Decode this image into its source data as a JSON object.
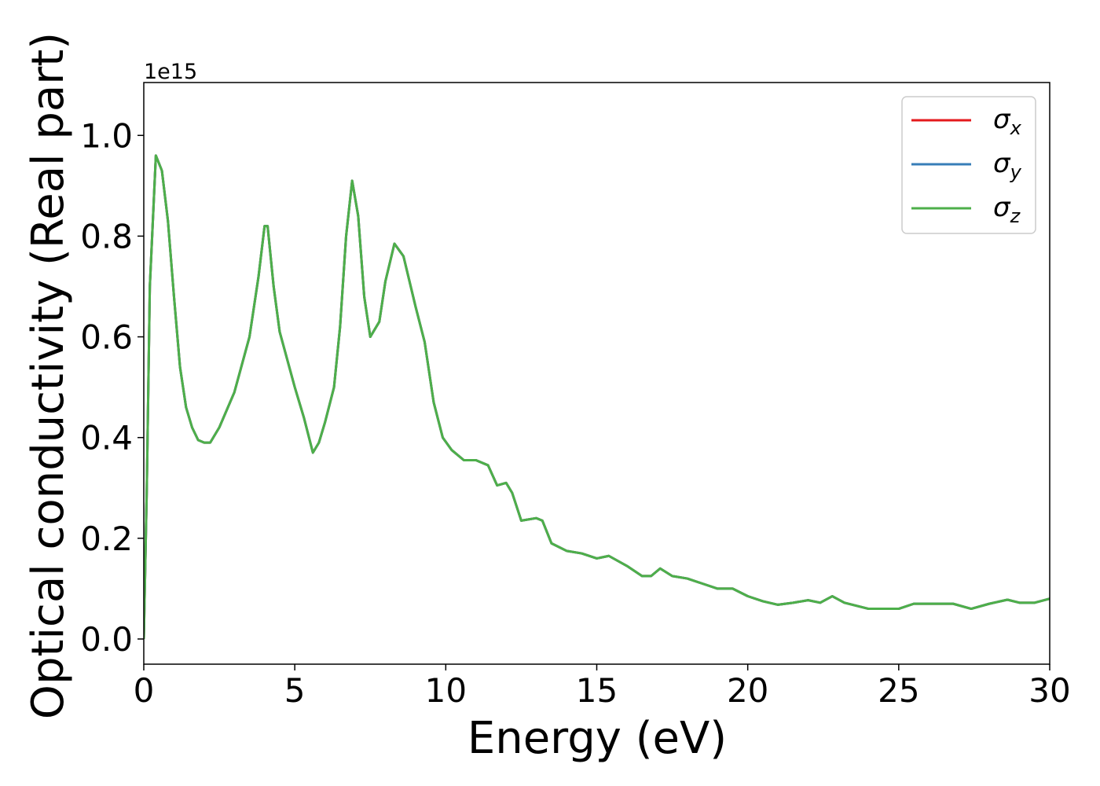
{
  "chart_data": {
    "type": "line",
    "x_label": "Energy (eV)",
    "y_label": "Optical conductivity (Real part)",
    "y_offset_text": "1e15",
    "xlim": [
      0,
      30
    ],
    "xticks": [
      0,
      5,
      10,
      15,
      20,
      25,
      30
    ],
    "ylim": [
      -0.05,
      1.105
    ],
    "yticks": [
      {
        "value": 0,
        "label": "0.0"
      },
      0.2,
      0.4,
      0.6,
      0.8,
      {
        "value": 1,
        "label": "1.0"
      }
    ],
    "grid": false,
    "legend": "upper right",
    "x": [
      0,
      0.1,
      0.2,
      0.4,
      0.6,
      0.8,
      1.0,
      1.2,
      1.4,
      1.6,
      1.8,
      2.0,
      2.2,
      2.5,
      3.0,
      3.5,
      3.8,
      4.0,
      4.1,
      4.3,
      4.5,
      5.0,
      5.3,
      5.6,
      5.8,
      6.0,
      6.3,
      6.5,
      6.7,
      6.9,
      7.1,
      7.3,
      7.5,
      7.8,
      8.0,
      8.3,
      8.6,
      9.0,
      9.3,
      9.6,
      9.9,
      10.2,
      10.6,
      11.0,
      11.4,
      11.7,
      12.0,
      12.2,
      12.5,
      13.0,
      13.2,
      13.5,
      14.0,
      14.5,
      15.0,
      15.4,
      16.0,
      16.5,
      16.8,
      17.1,
      17.5,
      18.0,
      18.5,
      19.0,
      19.5,
      20.0,
      20.5,
      21.0,
      21.5,
      22.0,
      22.4,
      22.8,
      23.2,
      24.0,
      25.0,
      25.5,
      26.0,
      26.8,
      27.4,
      28.0,
      28.6,
      29.0,
      29.5,
      30.0
    ],
    "series": [
      {
        "name": "σx",
        "color": "#e41a1c",
        "values": [
          0,
          0.3,
          0.7,
          0.96,
          0.93,
          0.83,
          0.68,
          0.54,
          0.46,
          0.42,
          0.395,
          0.39,
          0.39,
          0.42,
          0.49,
          0.6,
          0.72,
          0.82,
          0.82,
          0.7,
          0.61,
          0.5,
          0.44,
          0.37,
          0.39,
          0.43,
          0.5,
          0.62,
          0.8,
          0.91,
          0.84,
          0.68,
          0.6,
          0.63,
          0.71,
          0.785,
          0.76,
          0.66,
          0.59,
          0.47,
          0.4,
          0.375,
          0.355,
          0.355,
          0.345,
          0.305,
          0.31,
          0.29,
          0.235,
          0.24,
          0.235,
          0.19,
          0.175,
          0.17,
          0.16,
          0.165,
          0.145,
          0.125,
          0.125,
          0.14,
          0.125,
          0.12,
          0.11,
          0.1,
          0.1,
          0.085,
          0.075,
          0.068,
          0.072,
          0.077,
          0.072,
          0.085,
          0.072,
          0.06,
          0.06,
          0.07,
          0.07,
          0.07,
          0.06,
          0.07,
          0.078,
          0.072,
          0.072,
          0.08
        ]
      },
      {
        "name": "σy",
        "color": "#377eb8",
        "values": [
          0,
          0.3,
          0.7,
          0.96,
          0.93,
          0.83,
          0.68,
          0.54,
          0.46,
          0.42,
          0.395,
          0.39,
          0.39,
          0.42,
          0.49,
          0.6,
          0.72,
          0.82,
          0.82,
          0.7,
          0.61,
          0.5,
          0.44,
          0.37,
          0.39,
          0.43,
          0.5,
          0.62,
          0.8,
          0.91,
          0.84,
          0.68,
          0.6,
          0.63,
          0.71,
          0.785,
          0.76,
          0.66,
          0.59,
          0.47,
          0.4,
          0.375,
          0.355,
          0.355,
          0.345,
          0.305,
          0.31,
          0.29,
          0.235,
          0.24,
          0.235,
          0.19,
          0.175,
          0.17,
          0.16,
          0.165,
          0.145,
          0.125,
          0.125,
          0.14,
          0.125,
          0.12,
          0.11,
          0.1,
          0.1,
          0.085,
          0.075,
          0.068,
          0.072,
          0.077,
          0.072,
          0.085,
          0.072,
          0.06,
          0.06,
          0.07,
          0.07,
          0.07,
          0.06,
          0.07,
          0.078,
          0.072,
          0.072,
          0.08
        ]
      },
      {
        "name": "σz",
        "color": "#4daf4a",
        "values": [
          0,
          0.3,
          0.7,
          0.96,
          0.93,
          0.83,
          0.68,
          0.54,
          0.46,
          0.42,
          0.395,
          0.39,
          0.39,
          0.42,
          0.49,
          0.6,
          0.72,
          0.82,
          0.82,
          0.7,
          0.61,
          0.5,
          0.44,
          0.37,
          0.39,
          0.43,
          0.5,
          0.62,
          0.8,
          0.91,
          0.84,
          0.68,
          0.6,
          0.63,
          0.71,
          0.785,
          0.76,
          0.66,
          0.59,
          0.47,
          0.4,
          0.375,
          0.355,
          0.355,
          0.345,
          0.305,
          0.31,
          0.29,
          0.235,
          0.24,
          0.235,
          0.19,
          0.175,
          0.17,
          0.16,
          0.165,
          0.145,
          0.125,
          0.125,
          0.14,
          0.125,
          0.12,
          0.11,
          0.1,
          0.1,
          0.085,
          0.075,
          0.068,
          0.072,
          0.077,
          0.072,
          0.085,
          0.072,
          0.06,
          0.06,
          0.07,
          0.07,
          0.07,
          0.06,
          0.07,
          0.078,
          0.072,
          0.072,
          0.08
        ]
      }
    ]
  }
}
